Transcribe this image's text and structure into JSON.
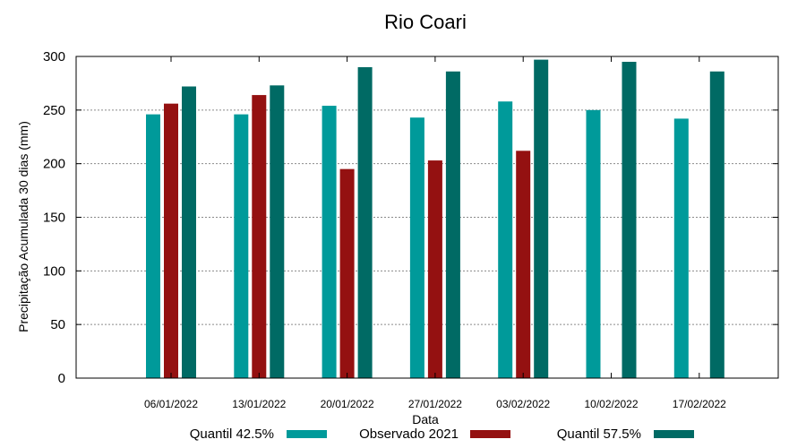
{
  "chart_data": {
    "type": "bar",
    "title": "Rio Coari",
    "xlabel": "Data",
    "ylabel": "Precipitação Acumulada 30 dias (mm)",
    "ylim": [
      0,
      300
    ],
    "yticks": [
      0,
      50,
      100,
      150,
      200,
      250,
      300
    ],
    "grid": true,
    "legend_position": "bottom",
    "categories": [
      "06/01/2022",
      "13/01/2022",
      "20/01/2022",
      "27/01/2022",
      "03/02/2022",
      "10/02/2022",
      "17/02/2022"
    ],
    "series": [
      {
        "name": "Quantil 42.5%",
        "color": "#009a9a",
        "values": [
          246,
          246,
          254,
          243,
          258,
          250,
          242
        ]
      },
      {
        "name": "Observado 2021",
        "color": "#941111",
        "values": [
          256,
          264,
          195,
          203,
          212,
          null,
          null
        ]
      },
      {
        "name": "Quantil 57.5%",
        "color": "#006a64",
        "values": [
          272,
          273,
          290,
          286,
          297,
          295,
          286
        ]
      }
    ]
  }
}
